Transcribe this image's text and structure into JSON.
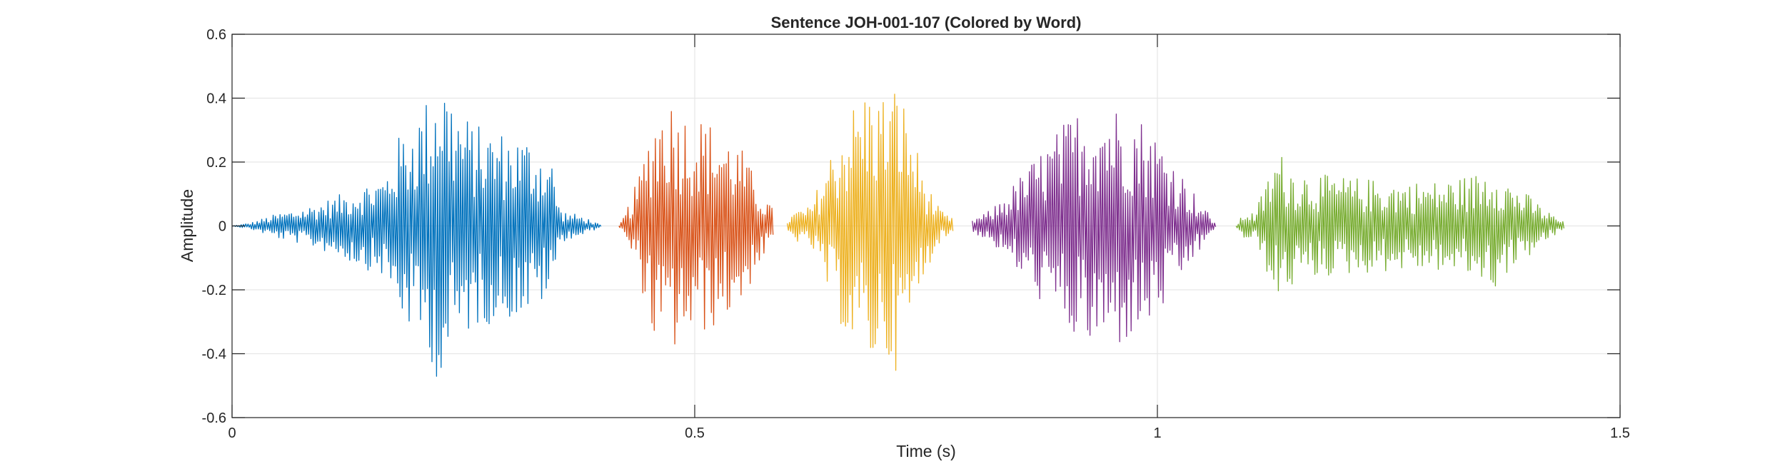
{
  "chart_data": {
    "type": "line",
    "title": "Sentence JOH-001-107 (Colored by Word)",
    "xlabel": "Time (s)",
    "ylabel": "Amplitude",
    "xlim": [
      0,
      1.5
    ],
    "ylim": [
      -0.6,
      0.6
    ],
    "x_ticks": [
      0,
      0.5,
      1,
      1.5
    ],
    "x_tick_labels": [
      "0",
      "0.5",
      "1",
      "1.5"
    ],
    "y_ticks": [
      -0.6,
      -0.4,
      -0.2,
      0,
      0.2,
      0.4,
      0.6
    ],
    "y_tick_labels": [
      "-0.6",
      "-0.4",
      "-0.2",
      "0",
      "0.2",
      "0.4",
      "0.6"
    ],
    "grid": true,
    "box": true,
    "series": [
      {
        "color": "#0072BD",
        "start": 0.0,
        "end": 0.4,
        "envelope": [
          [
            0.0,
            0.0
          ],
          [
            0.02,
            0.01
          ],
          [
            0.05,
            0.04
          ],
          [
            0.08,
            0.06
          ],
          [
            0.11,
            0.09
          ],
          [
            0.14,
            0.13
          ],
          [
            0.165,
            0.16
          ],
          [
            0.18,
            0.28
          ],
          [
            0.2,
            0.36
          ],
          [
            0.215,
            0.42
          ],
          [
            0.225,
            0.52
          ],
          [
            0.24,
            0.4
          ],
          [
            0.26,
            0.32
          ],
          [
            0.29,
            0.3
          ],
          [
            0.32,
            0.28
          ],
          [
            0.345,
            0.22
          ],
          [
            0.355,
            0.05
          ],
          [
            0.38,
            0.03
          ],
          [
            0.4,
            0.0
          ]
        ]
      },
      {
        "color": "#D95319",
        "start": 0.418,
        "end": 0.585,
        "envelope": [
          [
            0.418,
            0.0
          ],
          [
            0.425,
            0.04
          ],
          [
            0.44,
            0.16
          ],
          [
            0.455,
            0.36
          ],
          [
            0.47,
            0.42
          ],
          [
            0.49,
            0.36
          ],
          [
            0.51,
            0.34
          ],
          [
            0.53,
            0.3
          ],
          [
            0.55,
            0.25
          ],
          [
            0.57,
            0.12
          ],
          [
            0.585,
            0.05
          ]
        ]
      },
      {
        "color": "#EDB120",
        "start": 0.6,
        "end": 0.78,
        "envelope": [
          [
            0.6,
            0.02
          ],
          [
            0.61,
            0.05
          ],
          [
            0.625,
            0.06
          ],
          [
            0.645,
            0.22
          ],
          [
            0.665,
            0.36
          ],
          [
            0.685,
            0.44
          ],
          [
            0.705,
            0.42
          ],
          [
            0.72,
            0.46
          ],
          [
            0.735,
            0.3
          ],
          [
            0.75,
            0.14
          ],
          [
            0.765,
            0.05
          ],
          [
            0.78,
            0.02
          ]
        ]
      },
      {
        "color": "#7E2F8E",
        "start": 0.8,
        "end": 1.063,
        "envelope": [
          [
            0.8,
            0.02
          ],
          [
            0.82,
            0.05
          ],
          [
            0.85,
            0.15
          ],
          [
            0.88,
            0.26
          ],
          [
            0.91,
            0.36
          ],
          [
            0.935,
            0.4
          ],
          [
            0.96,
            0.38
          ],
          [
            0.985,
            0.34
          ],
          [
            1.01,
            0.25
          ],
          [
            1.03,
            0.15
          ],
          [
            1.05,
            0.06
          ],
          [
            1.063,
            0.01
          ]
        ]
      },
      {
        "color": "#77AC30",
        "start": 1.085,
        "end": 1.44,
        "envelope": [
          [
            1.085,
            0.0
          ],
          [
            1.095,
            0.05
          ],
          [
            1.105,
            0.04
          ],
          [
            1.115,
            0.12
          ],
          [
            1.13,
            0.24
          ],
          [
            1.15,
            0.18
          ],
          [
            1.18,
            0.16
          ],
          [
            1.22,
            0.15
          ],
          [
            1.26,
            0.14
          ],
          [
            1.3,
            0.14
          ],
          [
            1.34,
            0.16
          ],
          [
            1.365,
            0.2
          ],
          [
            1.38,
            0.14
          ],
          [
            1.4,
            0.1
          ],
          [
            1.42,
            0.05
          ],
          [
            1.44,
            0.01
          ]
        ]
      }
    ]
  }
}
